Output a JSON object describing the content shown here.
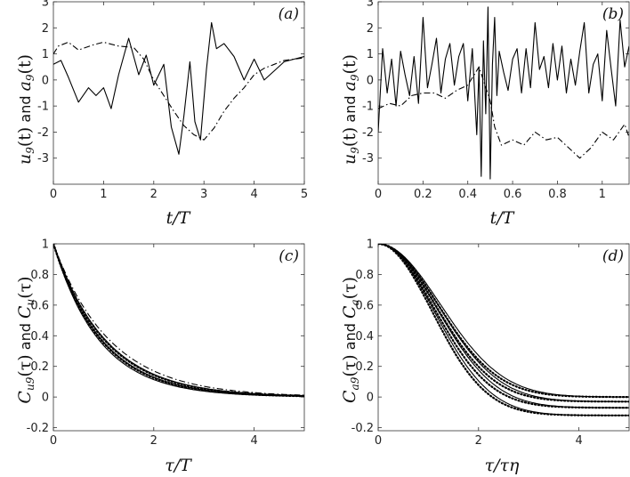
{
  "figure": {
    "background": "#ffffff",
    "line_color": "#000000"
  },
  "chart_data": [
    {
      "id": "a",
      "type": "line",
      "panel_label": "(a)",
      "xlabel": "t/T",
      "ylabel": "u_9(t) and a_9(t)",
      "ylabel_parts": {
        "sym1": "u",
        "sub1": "9",
        "arg1": "(t)",
        "and": " and ",
        "sym2": "a",
        "sub2": "9",
        "arg2": "(t)"
      },
      "xlim": [
        0,
        5
      ],
      "ylim": [
        -4,
        3
      ],
      "xticks": [
        0,
        1,
        2,
        3,
        4,
        5
      ],
      "xtick_labels": [
        "0",
        "1",
        "2",
        "3",
        "4",
        "5"
      ],
      "yticks": [
        -3,
        -2,
        -1,
        0,
        1,
        2,
        3
      ],
      "ytick_labels": [
        "-3",
        "-2",
        "-1",
        "0",
        "1",
        "2",
        "3"
      ],
      "series": [
        {
          "name": "u_9(t)",
          "style": "solid",
          "x": [
            0,
            0.15,
            0.3,
            0.5,
            0.7,
            0.85,
            1.0,
            1.15,
            1.3,
            1.5,
            1.7,
            1.85,
            2.0,
            2.2,
            2.35,
            2.5,
            2.6,
            2.72,
            2.82,
            2.93,
            3.05,
            3.15,
            3.25,
            3.4,
            3.6,
            3.8,
            4.0,
            4.2,
            4.4,
            4.6,
            4.8,
            5.0
          ],
          "y": [
            0.6,
            0.75,
            0.1,
            -0.85,
            -0.3,
            -0.6,
            -0.3,
            -1.1,
            0.2,
            1.6,
            0.2,
            0.95,
            -0.2,
            0.6,
            -1.8,
            -2.85,
            -1.4,
            0.7,
            -1.6,
            -2.3,
            0.4,
            2.2,
            1.2,
            1.4,
            0.9,
            0.0,
            0.8,
            0.0,
            0.35,
            0.7,
            0.8,
            0.9
          ]
        },
        {
          "name": "a_9(t)",
          "style": "dashdot",
          "x": [
            0,
            0.1,
            0.3,
            0.5,
            0.8,
            1.0,
            1.3,
            1.6,
            1.8,
            2.0,
            2.2,
            2.4,
            2.6,
            2.8,
            3.0,
            3.2,
            3.4,
            3.6,
            3.8,
            4.0,
            4.2,
            4.4,
            4.6,
            4.8,
            5.0
          ],
          "y": [
            1.0,
            1.3,
            1.45,
            1.15,
            1.35,
            1.45,
            1.3,
            1.25,
            0.8,
            0.0,
            -0.6,
            -1.2,
            -1.75,
            -2.1,
            -2.3,
            -1.85,
            -1.2,
            -0.7,
            -0.3,
            0.2,
            0.45,
            0.6,
            0.75,
            0.8,
            0.85
          ]
        }
      ]
    },
    {
      "id": "b",
      "type": "line",
      "panel_label": "(b)",
      "xlabel": "t/T",
      "ylabel": "u_9(t) and a_9(t)",
      "ylabel_parts": {
        "sym1": "u",
        "sub1": "9",
        "arg1": "(t)",
        "and": " and ",
        "sym2": "a",
        "sub2": "9",
        "arg2": "(t)"
      },
      "xlim": [
        0,
        1.12
      ],
      "ylim": [
        -4,
        3
      ],
      "xticks": [
        0,
        0.2,
        0.4,
        0.6,
        0.8,
        1
      ],
      "xtick_labels": [
        "0",
        "0.2",
        "0.4",
        "0.6",
        "0.8",
        "1"
      ],
      "yticks": [
        -3,
        -2,
        -1,
        0,
        1,
        2,
        3
      ],
      "ytick_labels": [
        "-3",
        "-2",
        "-1",
        "0",
        "1",
        "2",
        "3"
      ],
      "series": [
        {
          "name": "u_9(t)",
          "style": "solid",
          "x": [
            0,
            0.02,
            0.04,
            0.06,
            0.08,
            0.1,
            0.12,
            0.14,
            0.16,
            0.18,
            0.2,
            0.22,
            0.24,
            0.26,
            0.28,
            0.3,
            0.32,
            0.34,
            0.36,
            0.38,
            0.4,
            0.42,
            0.44,
            0.45,
            0.46,
            0.47,
            0.48,
            0.49,
            0.5,
            0.51,
            0.52,
            0.53,
            0.54,
            0.56,
            0.58,
            0.6,
            0.62,
            0.64,
            0.66,
            0.68,
            0.7,
            0.72,
            0.74,
            0.76,
            0.78,
            0.8,
            0.82,
            0.84,
            0.86,
            0.88,
            0.9,
            0.92,
            0.94,
            0.96,
            0.98,
            1.0,
            1.02,
            1.04,
            1.06,
            1.08,
            1.1,
            1.12
          ],
          "y": [
            -2.0,
            1.2,
            -0.5,
            0.8,
            -1.0,
            1.1,
            0.2,
            -0.6,
            0.9,
            -0.9,
            2.4,
            -0.3,
            0.6,
            1.6,
            -0.5,
            0.8,
            1.4,
            -0.2,
            0.9,
            1.4,
            -0.8,
            1.2,
            -2.1,
            0.5,
            -3.7,
            1.5,
            -1.3,
            2.8,
            -3.8,
            0.6,
            2.4,
            -0.6,
            1.1,
            0.3,
            -0.4,
            0.8,
            1.2,
            -0.5,
            1.2,
            -0.3,
            2.2,
            0.4,
            0.9,
            -0.3,
            1.4,
            0.0,
            1.3,
            -0.5,
            0.8,
            -0.2,
            1.1,
            2.2,
            -0.5,
            0.6,
            1.0,
            -0.8,
            1.9,
            0.4,
            -1.0,
            2.3,
            0.5,
            1.3
          ]
        },
        {
          "name": "a_9(t)",
          "style": "dashdot",
          "x": [
            0,
            0.05,
            0.1,
            0.15,
            0.2,
            0.25,
            0.3,
            0.35,
            0.4,
            0.45,
            0.5,
            0.52,
            0.55,
            0.6,
            0.65,
            0.7,
            0.75,
            0.8,
            0.85,
            0.9,
            0.95,
            1.0,
            1.05,
            1.1,
            1.12
          ],
          "y": [
            -1.1,
            -0.9,
            -1.0,
            -0.6,
            -0.5,
            -0.5,
            -0.7,
            -0.4,
            -0.2,
            0.5,
            -0.8,
            -1.8,
            -2.5,
            -2.3,
            -2.5,
            -2.0,
            -2.3,
            -2.2,
            -2.6,
            -3.0,
            -2.6,
            -2.0,
            -2.3,
            -1.7,
            -2.2
          ]
        }
      ]
    },
    {
      "id": "c",
      "type": "line",
      "panel_label": "(c)",
      "xlabel": "τ/T",
      "ylabel": "C_u9(τ) and C_u(τ)",
      "ylabel_parts": {
        "sym1": "C",
        "sub1": "u9",
        "arg1": "(τ)",
        "and": " and ",
        "sym2": "C",
        "sub2": "u",
        "arg2": "(τ)"
      },
      "xlim": [
        0,
        5
      ],
      "ylim": [
        -0.22,
        1
      ],
      "xticks": [
        0,
        2,
        4
      ],
      "xtick_labels": [
        "0",
        "2",
        "4"
      ],
      "yticks": [
        -0.2,
        0,
        0.2,
        0.4,
        0.6,
        0.8,
        1
      ],
      "ytick_labels": [
        "-0.2",
        "0",
        "0.2",
        "0.4",
        "0.6",
        "0.8",
        "1"
      ],
      "curve_model": "exp_decay",
      "series": [
        {
          "name": "C_u9 #1",
          "style": "solid",
          "tau": 0.92
        },
        {
          "name": "C_u9 #2",
          "style": "solid",
          "tau": 0.98
        },
        {
          "name": "C_u9 #3",
          "style": "solid",
          "tau": 1.05
        },
        {
          "name": "C_u9 #4",
          "style": "dashdot",
          "tau": 1.13
        },
        {
          "name": "C_u #1",
          "style": "dotted",
          "tau": 0.96
        },
        {
          "name": "C_u #2",
          "style": "dotted",
          "tau": 1.03
        }
      ]
    },
    {
      "id": "d",
      "type": "line",
      "panel_label": "(d)",
      "xlabel": "τ/τη",
      "ylabel": "C_a9(τ) and C_a(τ)",
      "ylabel_parts": {
        "sym1": "C",
        "sub1": "a9",
        "arg1": "(τ)",
        "and": " and ",
        "sym2": "C",
        "sub2": "a",
        "arg2": "(τ)"
      },
      "xlim": [
        0,
        5
      ],
      "ylim": [
        -0.22,
        1
      ],
      "xticks": [
        0,
        2,
        4
      ],
      "xtick_labels": [
        "0",
        "2",
        "4"
      ],
      "yticks": [
        -0.2,
        0,
        0.2,
        0.4,
        0.6,
        0.8,
        1
      ],
      "ytick_labels": [
        "-0.2",
        "0",
        "0.2",
        "0.4",
        "0.6",
        "0.8",
        "1"
      ],
      "curve_model": "gaussian_decay",
      "series": [
        {
          "name": "C_a9 #1",
          "style": "solid",
          "plateau": 0.0,
          "width": 1.75
        },
        {
          "name": "C_a9 #2",
          "style": "solid",
          "plateau": -0.03,
          "width": 1.7
        },
        {
          "name": "C_a9 #3",
          "style": "solid",
          "plateau": -0.07,
          "width": 1.65
        },
        {
          "name": "C_a9 #4",
          "style": "solid",
          "plateau": -0.12,
          "width": 1.58
        },
        {
          "name": "C_a #1",
          "style": "dotted",
          "plateau": 0.0,
          "width": 1.68
        },
        {
          "name": "C_a #2",
          "style": "dotted",
          "plateau": -0.03,
          "width": 1.63
        },
        {
          "name": "C_a #3",
          "style": "dotted",
          "plateau": -0.07,
          "width": 1.58
        },
        {
          "name": "C_a #4",
          "style": "dotted",
          "plateau": -0.12,
          "width": 1.52
        }
      ]
    }
  ]
}
